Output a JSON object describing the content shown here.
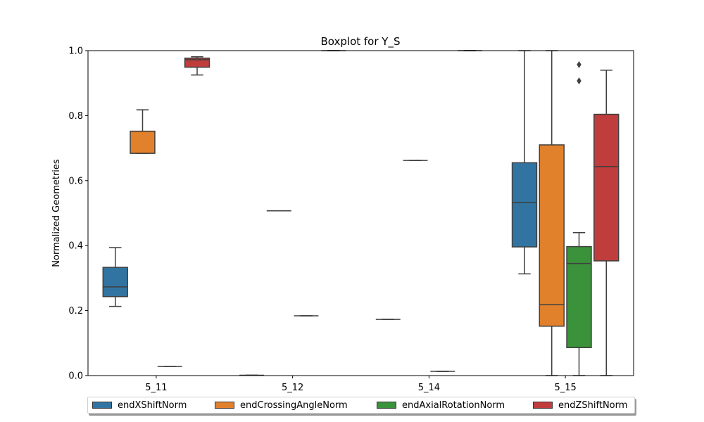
{
  "chart_data": {
    "type": "box",
    "title": "Boxplot for Y_S",
    "xlabel": "",
    "ylabel": "Normalized Geometries",
    "ylim": [
      0,
      1.0
    ],
    "yticks": [
      "0.0",
      "0.2",
      "0.4",
      "0.6",
      "0.8",
      "1.0"
    ],
    "categories": [
      "5_11",
      "5_12",
      "5_14",
      "5_15"
    ],
    "series": [
      {
        "name": "endXShiftNorm",
        "color": "#3274a1",
        "boxes": [
          {
            "whislo": 0.213,
            "q1": 0.243,
            "med": 0.273,
            "q3": 0.333,
            "whishi": 0.394,
            "fliers": []
          },
          {
            "whislo": 0.001,
            "q1": 0.001,
            "med": 0.001,
            "q3": 0.001,
            "whishi": 0.001,
            "fliers": []
          },
          {
            "whislo": 0.173,
            "q1": 0.173,
            "med": 0.173,
            "q3": 0.173,
            "whishi": 0.173,
            "fliers": []
          },
          {
            "whislo": 0.313,
            "q1": 0.396,
            "med": 0.533,
            "q3": 0.655,
            "whishi": 1.0,
            "fliers": []
          }
        ]
      },
      {
        "name": "endCrossingAngleNorm",
        "color": "#e1812c",
        "boxes": [
          {
            "whislo": 0.684,
            "q1": 0.684,
            "med": 0.684,
            "q3": 0.752,
            "whishi": 0.818,
            "fliers": []
          },
          {
            "whislo": 0.507,
            "q1": 0.507,
            "med": 0.507,
            "q3": 0.507,
            "whishi": 0.507,
            "fliers": []
          },
          {
            "whislo": 0.662,
            "q1": 0.662,
            "med": 0.662,
            "q3": 0.662,
            "whishi": 0.662,
            "fliers": []
          },
          {
            "whislo": 0.0,
            "q1": 0.152,
            "med": 0.218,
            "q3": 0.71,
            "whishi": 1.0,
            "fliers": []
          }
        ]
      },
      {
        "name": "endAxialRotationNorm",
        "color": "#3a923a",
        "boxes": [
          {
            "whislo": 0.028,
            "q1": 0.028,
            "med": 0.028,
            "q3": 0.028,
            "whishi": 0.028,
            "fliers": []
          },
          {
            "whislo": 0.184,
            "q1": 0.184,
            "med": 0.184,
            "q3": 0.184,
            "whishi": 0.184,
            "fliers": []
          },
          {
            "whislo": 0.013,
            "q1": 0.013,
            "med": 0.013,
            "q3": 0.013,
            "whishi": 0.013,
            "fliers": []
          },
          {
            "whislo": 0.0,
            "q1": 0.086,
            "med": 0.345,
            "q3": 0.397,
            "whishi": 0.44,
            "fliers": [
              0.907,
              0.957
            ]
          }
        ]
      },
      {
        "name": "endZShiftNorm",
        "color": "#c03d3e",
        "boxes": [
          {
            "whislo": 0.925,
            "q1": 0.949,
            "med": 0.972,
            "q3": 0.977,
            "whishi": 0.981,
            "fliers": []
          },
          {
            "whislo": 1.0,
            "q1": 1.0,
            "med": 1.0,
            "q3": 1.0,
            "whishi": 1.0,
            "fliers": []
          },
          {
            "whislo": 1.0,
            "q1": 1.0,
            "med": 1.0,
            "q3": 1.0,
            "whishi": 1.0,
            "fliers": []
          },
          {
            "whislo": 0.0,
            "q1": 0.353,
            "med": 0.643,
            "q3": 0.804,
            "whishi": 0.94,
            "fliers": []
          }
        ]
      }
    ],
    "legend": "bottom",
    "grid": false
  }
}
